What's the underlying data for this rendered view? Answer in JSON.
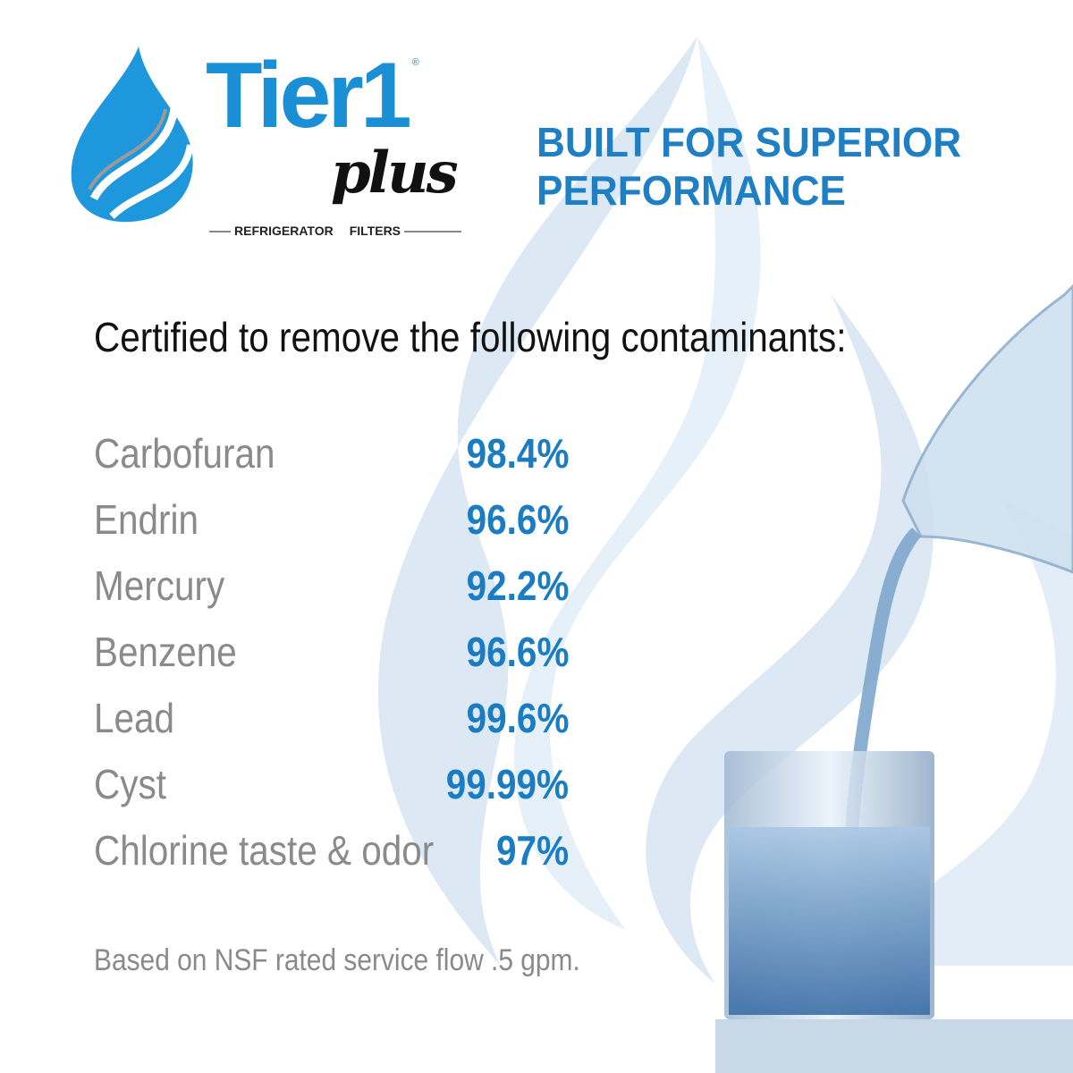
{
  "logo": {
    "word": "Tier1",
    "script": "plus",
    "registered": "®",
    "sub_left": "REFRIGERATOR",
    "sub_right": "FILTERS"
  },
  "tagline": {
    "line1": "BUILT FOR SUPERIOR",
    "line2": "PERFORMANCE"
  },
  "heading": "Certified to remove the following contaminants:",
  "contaminants": [
    {
      "name": "Carbofuran",
      "percent": "98.4%"
    },
    {
      "name": "Endrin",
      "percent": "96.6%"
    },
    {
      "name": "Mercury",
      "percent": "92.2%"
    },
    {
      "name": "Benzene",
      "percent": "96.6%"
    },
    {
      "name": "Lead",
      "percent": "99.6%"
    },
    {
      "name": "Cyst",
      "percent": "99.99%"
    },
    {
      "name": "Chlorine taste & odor",
      "percent": "97%"
    }
  ],
  "footnote": "Based on NSF rated service flow .5 gpm.",
  "colors": {
    "brand_blue": "#1e7fc4",
    "text_grey": "#8a8a8a",
    "flame_bg": "#dce9f5"
  }
}
